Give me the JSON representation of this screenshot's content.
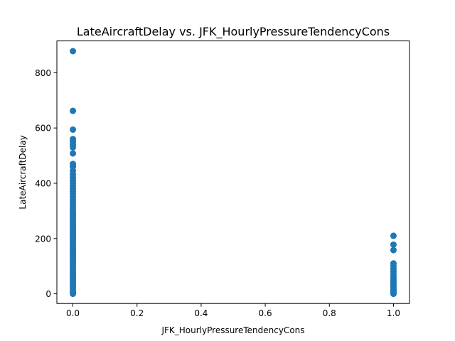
{
  "chart_data": {
    "type": "scatter",
    "title": "LateAircraftDelay vs. JFK_HourlyPressureTendencyCons",
    "xlabel": "JFK_HourlyPressureTendencyCons",
    "ylabel": "LateAircraftDelay",
    "xlim": [
      -0.05,
      1.05
    ],
    "ylim": [
      -35,
      915
    ],
    "xticks": [
      0.0,
      0.2,
      0.4,
      0.6,
      0.8,
      1.0
    ],
    "xtick_labels": [
      "0.0",
      "0.2",
      "0.4",
      "0.6",
      "0.8",
      "1.0"
    ],
    "yticks": [
      0,
      200,
      400,
      600,
      800
    ],
    "ytick_labels": [
      "0",
      "200",
      "400",
      "600",
      "800"
    ],
    "grid": false,
    "series": [
      {
        "color": "#1f77b4",
        "points": [
          {
            "x": 0,
            "y": 878
          },
          {
            "x": 0,
            "y": 662
          },
          {
            "x": 0,
            "y": 594
          },
          {
            "x": 0,
            "y": 560
          },
          {
            "x": 0,
            "y": 550
          },
          {
            "x": 0,
            "y": 540
          },
          {
            "x": 0,
            "y": 530
          },
          {
            "x": 0,
            "y": 508
          },
          {
            "x": 0,
            "y": 470
          },
          {
            "x": 0,
            "y": 460
          },
          {
            "x": 0,
            "y": 445
          },
          {
            "x": 0,
            "y": 432
          },
          {
            "x": 0,
            "y": 420
          },
          {
            "x": 0,
            "y": 410
          },
          {
            "x": 0,
            "y": 400
          },
          {
            "x": 0,
            "y": 390
          },
          {
            "x": 0,
            "y": 380
          },
          {
            "x": 0,
            "y": 370
          },
          {
            "x": 0,
            "y": 360
          },
          {
            "x": 0,
            "y": 350
          },
          {
            "x": 0,
            "y": 340
          },
          {
            "x": 0,
            "y": 330
          },
          {
            "x": 0,
            "y": 320
          },
          {
            "x": 0,
            "y": 310
          },
          {
            "x": 0,
            "y": 300
          },
          {
            "x": 0,
            "y": 292
          },
          {
            "x": 0,
            "y": 284
          },
          {
            "x": 0,
            "y": 276
          },
          {
            "x": 0,
            "y": 268
          },
          {
            "x": 0,
            "y": 260
          },
          {
            "x": 0,
            "y": 252
          },
          {
            "x": 0,
            "y": 244
          },
          {
            "x": 0,
            "y": 236
          },
          {
            "x": 0,
            "y": 228
          },
          {
            "x": 0,
            "y": 220
          },
          {
            "x": 0,
            "y": 212
          },
          {
            "x": 0,
            "y": 204
          },
          {
            "x": 0,
            "y": 196
          },
          {
            "x": 0,
            "y": 188
          },
          {
            "x": 0,
            "y": 180
          },
          {
            "x": 0,
            "y": 172
          },
          {
            "x": 0,
            "y": 164
          },
          {
            "x": 0,
            "y": 156
          },
          {
            "x": 0,
            "y": 148
          },
          {
            "x": 0,
            "y": 140
          },
          {
            "x": 0,
            "y": 132
          },
          {
            "x": 0,
            "y": 124
          },
          {
            "x": 0,
            "y": 116
          },
          {
            "x": 0,
            "y": 108
          },
          {
            "x": 0,
            "y": 100
          },
          {
            "x": 0,
            "y": 92
          },
          {
            "x": 0,
            "y": 84
          },
          {
            "x": 0,
            "y": 76
          },
          {
            "x": 0,
            "y": 68
          },
          {
            "x": 0,
            "y": 60
          },
          {
            "x": 0,
            "y": 52
          },
          {
            "x": 0,
            "y": 44
          },
          {
            "x": 0,
            "y": 36
          },
          {
            "x": 0,
            "y": 28
          },
          {
            "x": 0,
            "y": 20
          },
          {
            "x": 0,
            "y": 12
          },
          {
            "x": 0,
            "y": 5
          },
          {
            "x": 0,
            "y": 0
          },
          {
            "x": 1,
            "y": 210
          },
          {
            "x": 1,
            "y": 178
          },
          {
            "x": 1,
            "y": 158
          },
          {
            "x": 1,
            "y": 110
          },
          {
            "x": 1,
            "y": 100
          },
          {
            "x": 1,
            "y": 90
          },
          {
            "x": 1,
            "y": 80
          },
          {
            "x": 1,
            "y": 70
          },
          {
            "x": 1,
            "y": 62
          },
          {
            "x": 1,
            "y": 55
          },
          {
            "x": 1,
            "y": 48
          },
          {
            "x": 1,
            "y": 42
          },
          {
            "x": 1,
            "y": 36
          },
          {
            "x": 1,
            "y": 30
          },
          {
            "x": 1,
            "y": 25
          },
          {
            "x": 1,
            "y": 20
          },
          {
            "x": 1,
            "y": 15
          },
          {
            "x": 1,
            "y": 10
          },
          {
            "x": 1,
            "y": 6
          },
          {
            "x": 1,
            "y": 3
          },
          {
            "x": 1,
            "y": 0
          }
        ]
      }
    ]
  }
}
